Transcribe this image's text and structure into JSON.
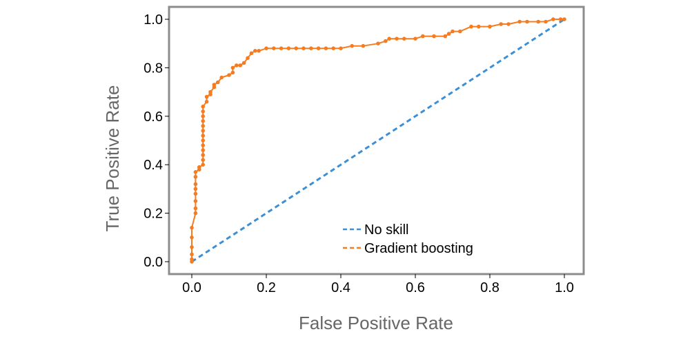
{
  "chart_data": {
    "type": "line",
    "title": "",
    "xlabel": "False Positive Rate",
    "ylabel": "True Positive Rate",
    "xlim": [
      0.0,
      1.0
    ],
    "ylim": [
      0.0,
      1.0
    ],
    "x_ticks": [
      "0.0",
      "0.2",
      "0.4",
      "0.6",
      "0.8",
      "1.0"
    ],
    "y_ticks": [
      "0.0",
      "0.2",
      "0.4",
      "0.6",
      "0.8",
      "1.0"
    ],
    "grid": false,
    "legend_position": "bottom-center",
    "series": [
      {
        "name": "No skill",
        "color": "#3a8fd6",
        "style": "dashed",
        "markers": false,
        "points": [
          [
            0.0,
            0.0
          ],
          [
            1.0,
            1.0
          ]
        ]
      },
      {
        "name": "Gradient boosting",
        "color": "#f57c20",
        "style": "solid",
        "markers": true,
        "points": [
          [
            0.0,
            0.0
          ],
          [
            0.0,
            0.01
          ],
          [
            0.0,
            0.03
          ],
          [
            0.0,
            0.06
          ],
          [
            0.0,
            0.1
          ],
          [
            0.0,
            0.14
          ],
          [
            0.01,
            0.2
          ],
          [
            0.01,
            0.22
          ],
          [
            0.01,
            0.25
          ],
          [
            0.01,
            0.28
          ],
          [
            0.01,
            0.3
          ],
          [
            0.01,
            0.32
          ],
          [
            0.01,
            0.35
          ],
          [
            0.01,
            0.37
          ],
          [
            0.02,
            0.38
          ],
          [
            0.02,
            0.39
          ],
          [
            0.03,
            0.4
          ],
          [
            0.03,
            0.42
          ],
          [
            0.03,
            0.44
          ],
          [
            0.03,
            0.46
          ],
          [
            0.03,
            0.48
          ],
          [
            0.03,
            0.5
          ],
          [
            0.03,
            0.52
          ],
          [
            0.03,
            0.54
          ],
          [
            0.03,
            0.56
          ],
          [
            0.03,
            0.58
          ],
          [
            0.03,
            0.6
          ],
          [
            0.03,
            0.62
          ],
          [
            0.03,
            0.64
          ],
          [
            0.04,
            0.66
          ],
          [
            0.04,
            0.68
          ],
          [
            0.05,
            0.69
          ],
          [
            0.05,
            0.7
          ],
          [
            0.06,
            0.72
          ],
          [
            0.06,
            0.73
          ],
          [
            0.07,
            0.74
          ],
          [
            0.08,
            0.76
          ],
          [
            0.1,
            0.77
          ],
          [
            0.11,
            0.78
          ],
          [
            0.11,
            0.8
          ],
          [
            0.12,
            0.81
          ],
          [
            0.13,
            0.81
          ],
          [
            0.14,
            0.82
          ],
          [
            0.15,
            0.84
          ],
          [
            0.16,
            0.86
          ],
          [
            0.17,
            0.87
          ],
          [
            0.18,
            0.87
          ],
          [
            0.2,
            0.88
          ],
          [
            0.22,
            0.88
          ],
          [
            0.24,
            0.88
          ],
          [
            0.26,
            0.88
          ],
          [
            0.28,
            0.88
          ],
          [
            0.3,
            0.88
          ],
          [
            0.32,
            0.88
          ],
          [
            0.34,
            0.88
          ],
          [
            0.36,
            0.88
          ],
          [
            0.38,
            0.88
          ],
          [
            0.4,
            0.88
          ],
          [
            0.43,
            0.89
          ],
          [
            0.46,
            0.89
          ],
          [
            0.5,
            0.9
          ],
          [
            0.52,
            0.91
          ],
          [
            0.53,
            0.92
          ],
          [
            0.55,
            0.92
          ],
          [
            0.57,
            0.92
          ],
          [
            0.6,
            0.92
          ],
          [
            0.62,
            0.93
          ],
          [
            0.65,
            0.93
          ],
          [
            0.68,
            0.93
          ],
          [
            0.69,
            0.94
          ],
          [
            0.7,
            0.95
          ],
          [
            0.72,
            0.95
          ],
          [
            0.75,
            0.97
          ],
          [
            0.77,
            0.97
          ],
          [
            0.8,
            0.97
          ],
          [
            0.83,
            0.98
          ],
          [
            0.85,
            0.98
          ],
          [
            0.88,
            0.99
          ],
          [
            0.9,
            0.99
          ],
          [
            0.93,
            0.99
          ],
          [
            0.95,
            0.99
          ],
          [
            0.97,
            1.0
          ],
          [
            0.99,
            1.0
          ],
          [
            1.0,
            1.0
          ]
        ]
      }
    ]
  }
}
